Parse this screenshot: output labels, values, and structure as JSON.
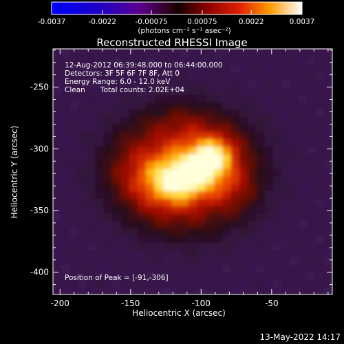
{
  "colorbar": {
    "ticks": [
      "-0.0037",
      "-0.0022",
      "-0.00075",
      "0.00075",
      "0.0022",
      "0.0037"
    ],
    "tick_values": [
      -0.0037,
      -0.0022,
      -0.00075,
      0.00075,
      0.0022,
      0.0037
    ],
    "unit_label": "(photons cm⁻² s⁻¹ asec⁻²)"
  },
  "plot": {
    "title": "Reconstructed RHESSI Image",
    "xlabel": "Heliocentric X (arcsec)",
    "ylabel": "Heliocentric Y (arcsec)",
    "x_ticks": [
      "-200",
      "-150",
      "-100",
      "-50"
    ],
    "x_tick_values": [
      -200,
      -150,
      -100,
      -50
    ],
    "y_ticks": [
      "-250",
      "-300",
      "-350",
      "-400"
    ],
    "y_tick_values": [
      -250,
      -300,
      -350,
      -400
    ],
    "xlim": [
      -205,
      -7
    ],
    "ylim": [
      -418,
      -219
    ]
  },
  "annotations": {
    "time_range": "12-Aug-2012 06:39:48.000 to 06:44:00.000",
    "detectors": "Detectors: 3F 5F 6F 7F 8F, Att 0",
    "energy": "Energy Range: 6.0 - 12.0 keV",
    "clean_label": "Clean",
    "total_counts": "Total counts: 2.02E+04",
    "peak": "Position of Peak = [-91,-306]"
  },
  "footer": {
    "timestamp": "13-May-2022 14:17"
  },
  "colors": {
    "background": "#000000",
    "text": "#ffffff"
  }
}
